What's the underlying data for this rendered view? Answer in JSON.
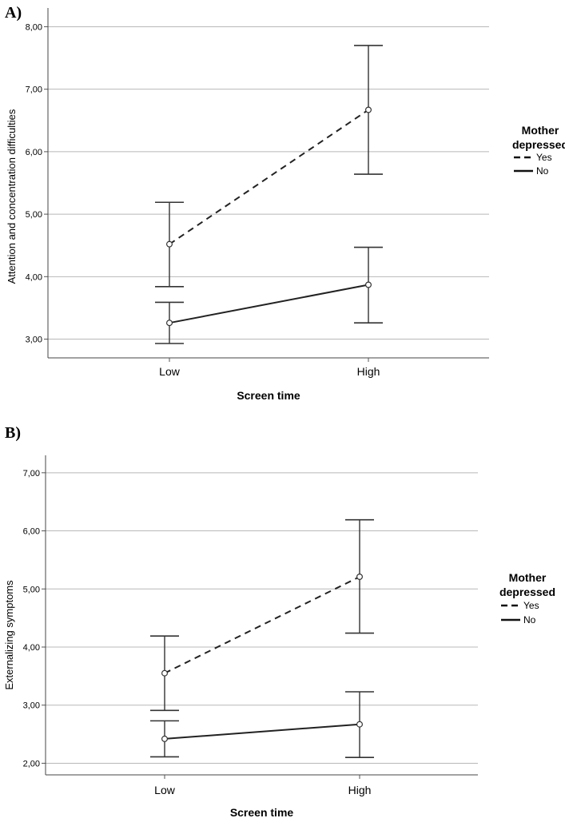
{
  "chart_data": [
    {
      "panel": "A)",
      "type": "line",
      "xlabel": "Screen time",
      "ylabel": "Attention and concentration difficulties",
      "categories": [
        "Low",
        "High"
      ],
      "ylim": [
        2.7,
        8.3
      ],
      "yticks": [
        "3,00",
        "4,00",
        "5,00",
        "6,00",
        "7,00",
        "8,00"
      ],
      "ytick_values": [
        3,
        4,
        5,
        6,
        7,
        8
      ],
      "grid": true,
      "legend": {
        "title_line1": "Mother",
        "title_line2": "depressed",
        "placement": "right"
      },
      "series": [
        {
          "name": "Yes",
          "style": "dashed",
          "values": [
            4.52,
            6.67
          ],
          "lower": [
            3.84,
            5.64
          ],
          "upper": [
            5.19,
            7.7
          ]
        },
        {
          "name": "No",
          "style": "solid",
          "values": [
            3.26,
            3.87
          ],
          "lower": [
            2.93,
            3.26
          ],
          "upper": [
            3.59,
            4.47
          ]
        }
      ]
    },
    {
      "panel": "B)",
      "type": "line",
      "xlabel": "Screen time",
      "ylabel": "Externalizing symptoms",
      "categories": [
        "Low",
        "High"
      ],
      "ylim": [
        1.8,
        7.3
      ],
      "yticks": [
        "2,00",
        "3,00",
        "4,00",
        "5,00",
        "6,00",
        "7,00"
      ],
      "ytick_values": [
        2,
        3,
        4,
        5,
        6,
        7
      ],
      "grid": true,
      "legend": {
        "title_line1": "Mother",
        "title_line2": "depressed",
        "placement": "right"
      },
      "series": [
        {
          "name": "Yes",
          "style": "dashed",
          "values": [
            3.55,
            5.21
          ],
          "lower": [
            2.91,
            4.24
          ],
          "upper": [
            4.19,
            6.19
          ]
        },
        {
          "name": "No",
          "style": "solid",
          "values": [
            2.42,
            2.67
          ],
          "lower": [
            2.11,
            2.1
          ],
          "upper": [
            2.73,
            3.23
          ]
        }
      ]
    }
  ]
}
